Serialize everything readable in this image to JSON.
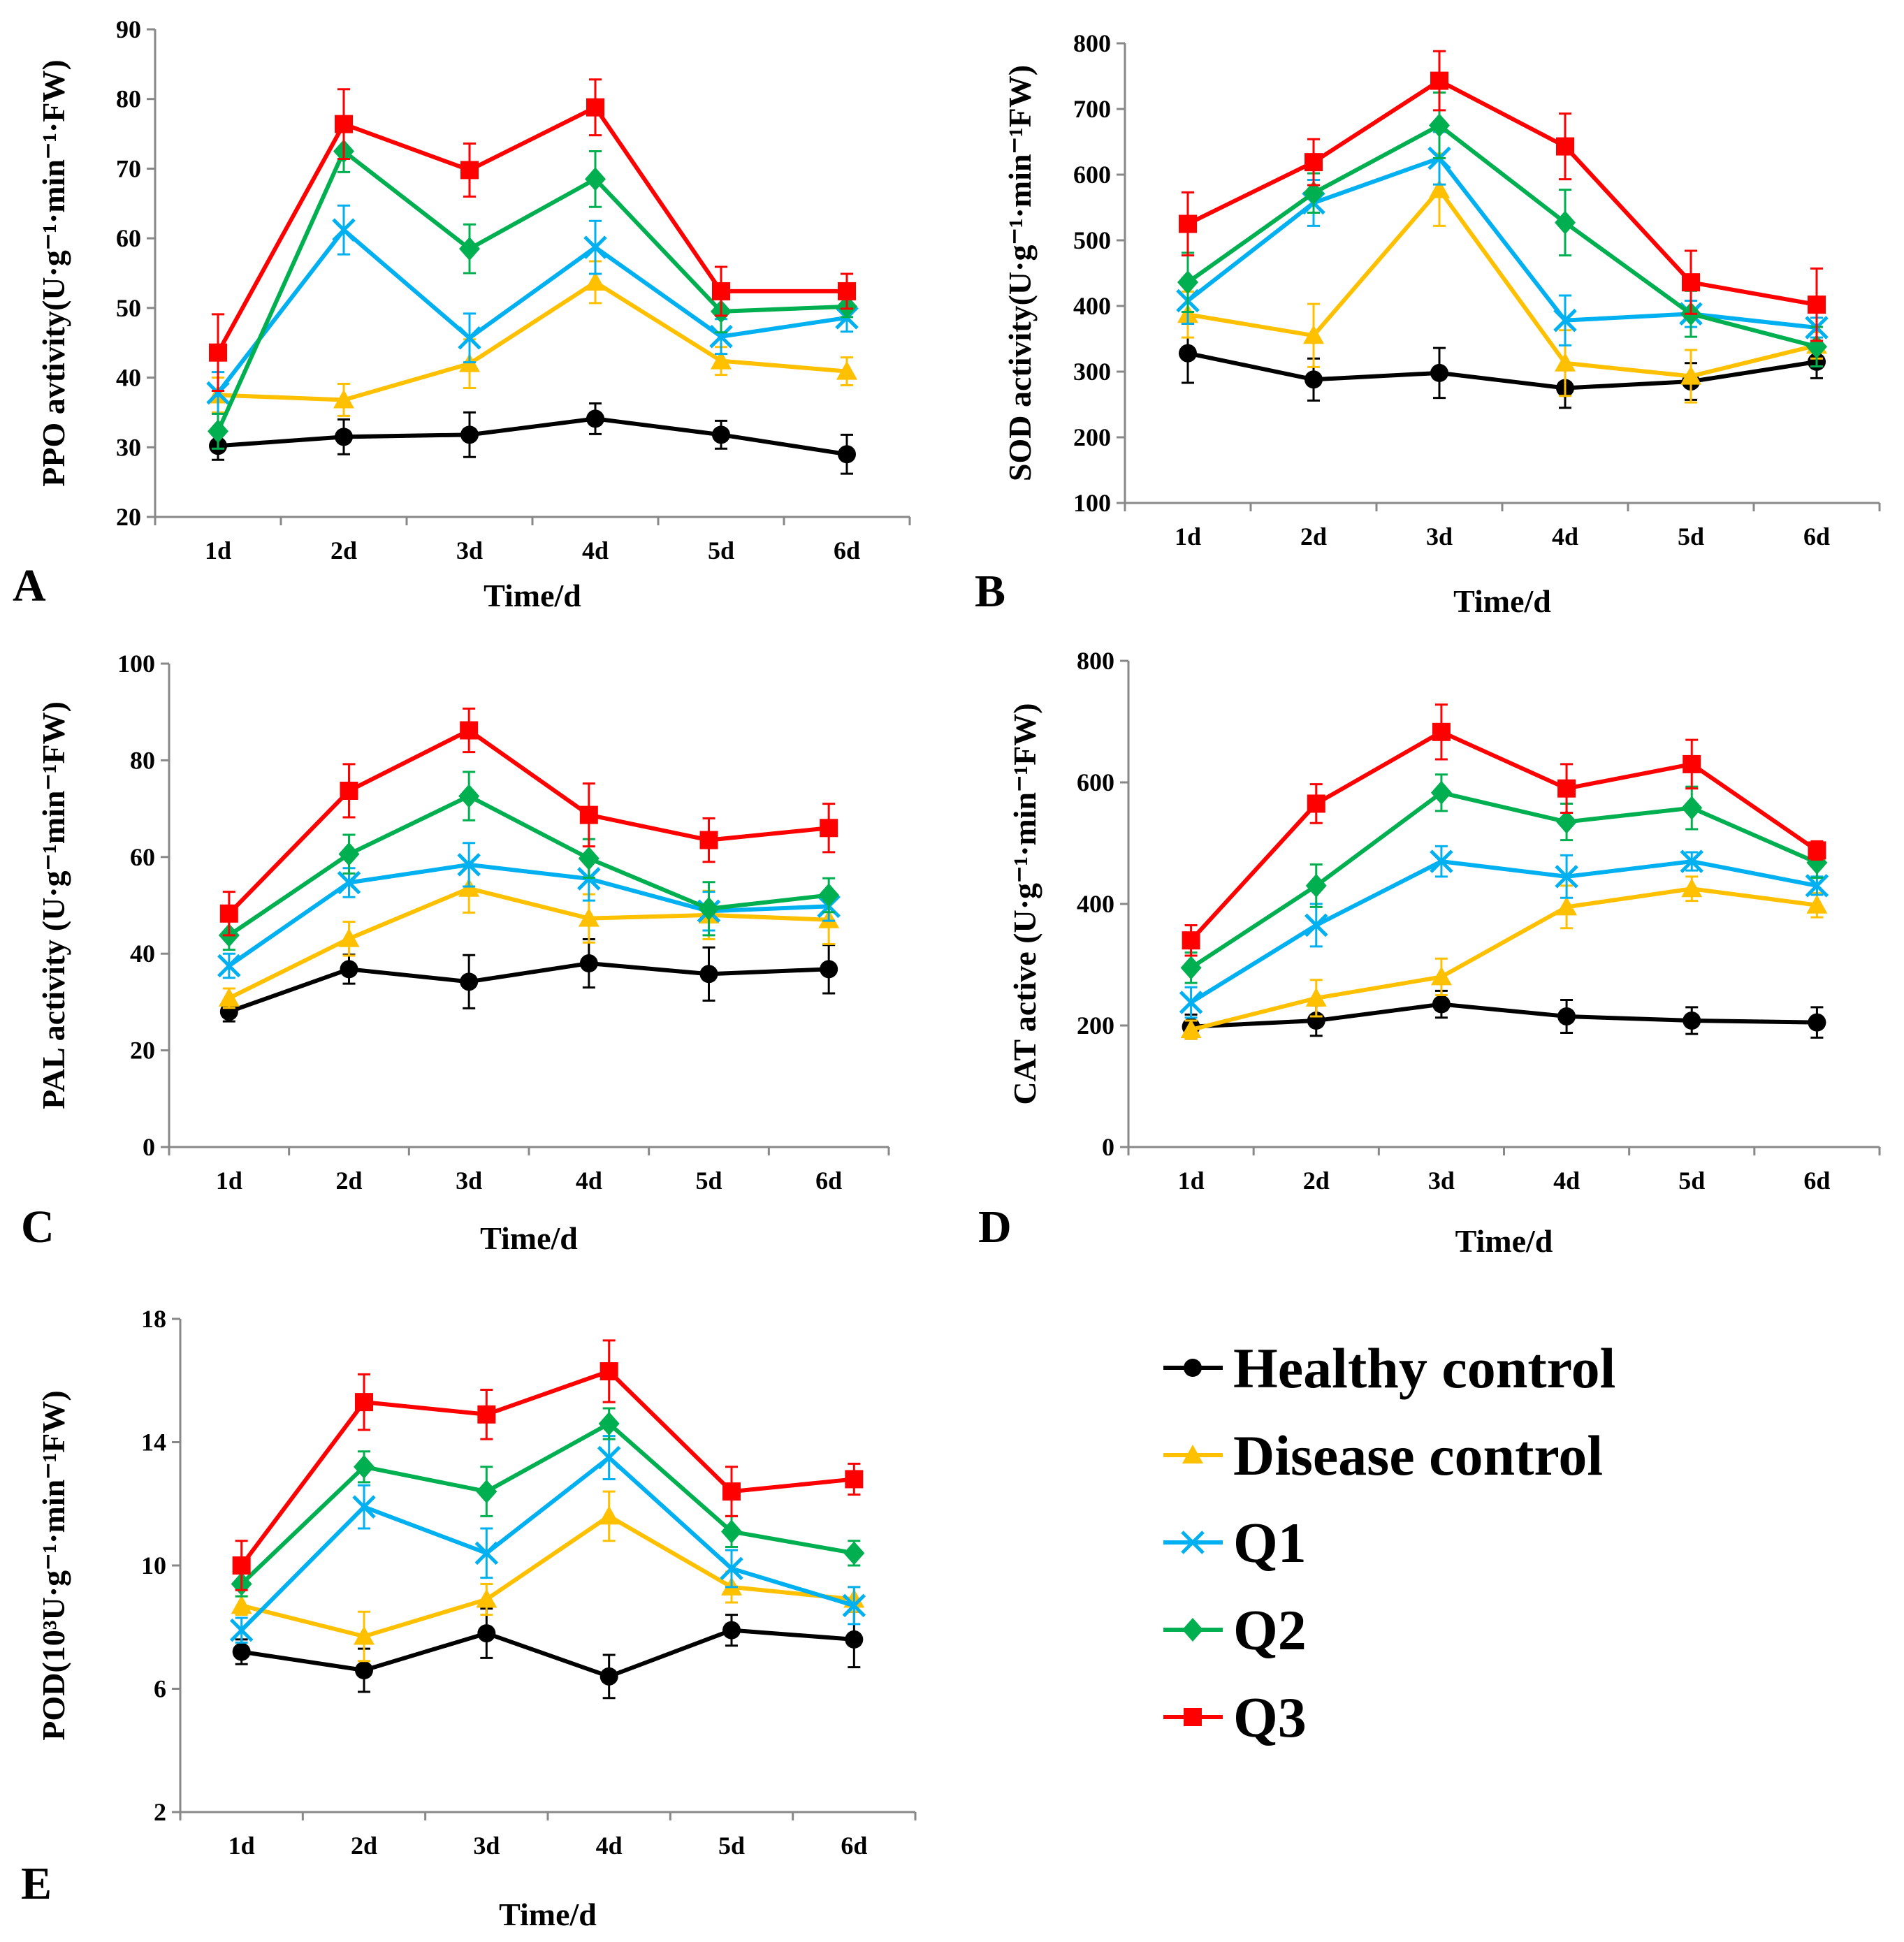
{
  "series_meta": [
    {
      "key": "healthy",
      "name": "Healthy control",
      "color": "#000000",
      "marker": "circle"
    },
    {
      "key": "disease",
      "name": "Disease control",
      "color": "#FFC000",
      "marker": "triangle"
    },
    {
      "key": "q1",
      "name": "Q1",
      "color": "#00B0F0",
      "marker": "x"
    },
    {
      "key": "q2",
      "name": "Q2",
      "color": "#00B050",
      "marker": "diamond"
    },
    {
      "key": "q3",
      "name": "Q3",
      "color": "#FF0000",
      "marker": "square"
    }
  ],
  "chart_data": [
    {
      "panel": "A",
      "type": "line",
      "xlabel": "Time/d",
      "ylabel": "PPO avtivity(U·g⁻¹·min⁻¹·FW)",
      "categories": [
        "1d",
        "2d",
        "3d",
        "4d",
        "5d",
        "6d"
      ],
      "ylim": [
        20,
        90
      ],
      "yticks": [
        20,
        30,
        40,
        50,
        60,
        70,
        80,
        90
      ],
      "series": [
        {
          "name": "Healthy control",
          "values": [
            30.2,
            31.5,
            31.8,
            34.1,
            31.8,
            29.0
          ],
          "errors": [
            2.0,
            2.5,
            3.2,
            2.2,
            2.0,
            2.8
          ]
        },
        {
          "name": "Disease control",
          "values": [
            37.5,
            36.8,
            42.0,
            53.7,
            42.4,
            40.9
          ],
          "errors": [
            2.5,
            2.3,
            3.5,
            3.0,
            2.0,
            2.0
          ]
        },
        {
          "name": "Q1",
          "values": [
            37.8,
            61.2,
            45.7,
            58.7,
            45.9,
            48.6
          ],
          "errors": [
            3.0,
            3.5,
            3.5,
            3.8,
            2.5,
            2.0
          ]
        },
        {
          "name": "Q2",
          "values": [
            32.3,
            72.5,
            58.5,
            68.5,
            49.5,
            50.2
          ],
          "errors": [
            2.5,
            3.0,
            3.5,
            4.0,
            3.0,
            1.5
          ]
        },
        {
          "name": "Q3",
          "values": [
            43.6,
            76.4,
            69.8,
            78.8,
            52.4,
            52.4
          ],
          "errors": [
            5.5,
            5.0,
            3.8,
            4.0,
            3.5,
            2.5
          ]
        }
      ]
    },
    {
      "panel": "B",
      "type": "line",
      "xlabel": "Time/d",
      "ylabel": "SOD activity(U·g⁻¹·min⁻¹FW)",
      "categories": [
        "1d",
        "2d",
        "3d",
        "4d",
        "5d",
        "6d"
      ],
      "ylim": [
        100,
        800
      ],
      "yticks": [
        100,
        200,
        300,
        400,
        500,
        600,
        700,
        800
      ],
      "series": [
        {
          "name": "Healthy control",
          "values": [
            328,
            288,
            298,
            275,
            285,
            315
          ],
          "errors": [
            45,
            32,
            38,
            30,
            28,
            25
          ]
        },
        {
          "name": "Disease control",
          "values": [
            387,
            355,
            577,
            313,
            293,
            340
          ],
          "errors": [
            35,
            48,
            55,
            50,
            40,
            20
          ]
        },
        {
          "name": "Q1",
          "values": [
            408,
            557,
            625,
            378,
            388,
            367
          ],
          "errors": [
            35,
            35,
            40,
            38,
            20,
            15
          ]
        },
        {
          "name": "Q2",
          "values": [
            436,
            572,
            675,
            527,
            388,
            338
          ],
          "errors": [
            45,
            30,
            50,
            50,
            35,
            30
          ]
        },
        {
          "name": "Q3",
          "values": [
            525,
            619,
            743,
            643,
            436,
            402
          ],
          "errors": [
            48,
            35,
            45,
            50,
            48,
            55
          ]
        }
      ]
    },
    {
      "panel": "C",
      "type": "line",
      "xlabel": "Time/d",
      "ylabel": "PAL activity (U·g⁻¹min⁻¹FW)",
      "categories": [
        "1d",
        "2d",
        "3d",
        "4d",
        "5d",
        "6d"
      ],
      "ylim": [
        0,
        100
      ],
      "yticks": [
        0,
        20,
        40,
        60,
        80,
        100
      ],
      "series": [
        {
          "name": "Healthy control",
          "values": [
            28.0,
            36.8,
            34.2,
            38.0,
            35.8,
            36.8
          ],
          "errors": [
            2.0,
            3.0,
            5.5,
            5.0,
            5.5,
            5.0
          ]
        },
        {
          "name": "Disease control",
          "values": [
            30.8,
            43.1,
            53.5,
            47.3,
            48.0,
            47.0
          ],
          "errors": [
            2.0,
            3.5,
            5.0,
            5.0,
            5.0,
            5.0
          ]
        },
        {
          "name": "Q1",
          "values": [
            37.5,
            54.7,
            58.4,
            55.5,
            48.8,
            49.8
          ],
          "errors": [
            2.5,
            3.0,
            4.5,
            4.5,
            4.0,
            3.0
          ]
        },
        {
          "name": "Q2",
          "values": [
            43.8,
            60.6,
            72.6,
            59.7,
            49.3,
            52.1
          ],
          "errors": [
            3.0,
            4.0,
            5.0,
            4.0,
            5.5,
            3.5
          ]
        },
        {
          "name": "Q3",
          "values": [
            48.3,
            73.7,
            86.2,
            68.7,
            63.5,
            66.0
          ],
          "errors": [
            4.5,
            5.5,
            4.5,
            6.5,
            4.5,
            5.0
          ]
        }
      ]
    },
    {
      "panel": "D",
      "type": "line",
      "xlabel": "Time/d",
      "ylabel": "CAT active (U·g⁻¹·min⁻¹FW)",
      "categories": [
        "1d",
        "2d",
        "3d",
        "4d",
        "5d",
        "6d"
      ],
      "ylim": [
        0,
        800
      ],
      "yticks": [
        0,
        200,
        400,
        600,
        800
      ],
      "series": [
        {
          "name": "Healthy control",
          "values": [
            198,
            208,
            235,
            215,
            208,
            205
          ],
          "errors": [
            20,
            25,
            22,
            27,
            22,
            25
          ]
        },
        {
          "name": "Disease control",
          "values": [
            193,
            245,
            280,
            395,
            425,
            398
          ],
          "errors": [
            15,
            30,
            30,
            35,
            20,
            20
          ]
        },
        {
          "name": "Q1",
          "values": [
            238,
            365,
            470,
            445,
            470,
            430
          ],
          "errors": [
            25,
            35,
            25,
            35,
            15,
            15
          ]
        },
        {
          "name": "Q2",
          "values": [
            295,
            430,
            583,
            535,
            558,
            468
          ],
          "errors": [
            25,
            35,
            30,
            30,
            35,
            25
          ]
        },
        {
          "name": "Q3",
          "values": [
            340,
            565,
            683,
            590,
            630,
            488
          ],
          "errors": [
            25,
            32,
            45,
            40,
            40,
            15
          ]
        }
      ]
    },
    {
      "panel": "E",
      "type": "line",
      "xlabel": "Time/d",
      "ylabel": "POD(10³U·g⁻¹·min⁻¹FW)",
      "categories": [
        "1d",
        "2d",
        "3d",
        "4d",
        "5d",
        "6d"
      ],
      "ylim": [
        2,
        18
      ],
      "yticks": [
        2,
        6,
        10,
        14,
        18
      ],
      "series": [
        {
          "name": "Healthy control",
          "values": [
            7.2,
            6.6,
            7.8,
            6.4,
            7.9,
            7.6
          ],
          "errors": [
            0.4,
            0.7,
            0.8,
            0.7,
            0.5,
            0.9
          ]
        },
        {
          "name": "Disease control",
          "values": [
            8.7,
            7.7,
            8.9,
            11.6,
            9.3,
            8.9
          ],
          "errors": [
            0.3,
            0.8,
            0.5,
            0.8,
            0.5,
            0.4
          ]
        },
        {
          "name": "Q1",
          "values": [
            7.9,
            11.9,
            10.4,
            13.5,
            9.9,
            8.7
          ],
          "errors": [
            0.4,
            0.7,
            0.8,
            0.7,
            0.6,
            0.6
          ]
        },
        {
          "name": "Q2",
          "values": [
            9.4,
            13.2,
            12.4,
            14.6,
            11.1,
            10.4
          ],
          "errors": [
            0.4,
            0.5,
            0.8,
            0.5,
            0.5,
            0.4
          ]
        },
        {
          "name": "Q3",
          "values": [
            10.0,
            15.3,
            14.9,
            16.3,
            12.4,
            12.8
          ],
          "errors": [
            0.8,
            0.9,
            0.8,
            1.0,
            0.8,
            0.5
          ]
        }
      ]
    }
  ]
}
